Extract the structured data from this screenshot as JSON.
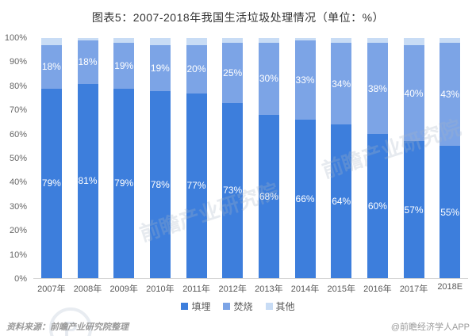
{
  "title": "图表5：2007-2018年我国生活垃圾处理情况（单位：%）",
  "chart_data": {
    "type": "bar",
    "stacked": true,
    "categories": [
      "2007年",
      "2008年",
      "2009年",
      "2010年",
      "2011年",
      "2012年",
      "2013年",
      "2014年",
      "2015年",
      "2016年",
      "2017年",
      "2018E"
    ],
    "series": [
      {
        "name": "填埋",
        "color": "#3d7edc",
        "labels_visible": true,
        "values": [
          79,
          81,
          79,
          78,
          77,
          73,
          68,
          66,
          64,
          60,
          57,
          55
        ]
      },
      {
        "name": "焚烧",
        "color": "#7ca4e6",
        "labels_visible": true,
        "values": [
          18,
          18,
          19,
          19,
          20,
          25,
          30,
          33,
          34,
          38,
          40,
          43
        ]
      },
      {
        "name": "其他",
        "color": "#c8dcf5",
        "labels_visible": false,
        "values": [
          3,
          1,
          2,
          3,
          3,
          2,
          2,
          1,
          2,
          2,
          3,
          2
        ]
      }
    ],
    "ylim": [
      0,
      100
    ],
    "ytick_step": 10,
    "yticks": [
      "100%",
      "90%",
      "80%",
      "70%",
      "60%",
      "50%",
      "40%",
      "30%",
      "20%",
      "10%",
      "0%"
    ],
    "value_suffix": "%",
    "grid": false,
    "legend_position": "bottom"
  },
  "footer": {
    "source": "资料来源：前瞻产业研究院整理",
    "credit": "@前瞻经济学人APP"
  },
  "watermark": {
    "text": "前瞻产业研究院",
    "logo_letter": "P"
  }
}
